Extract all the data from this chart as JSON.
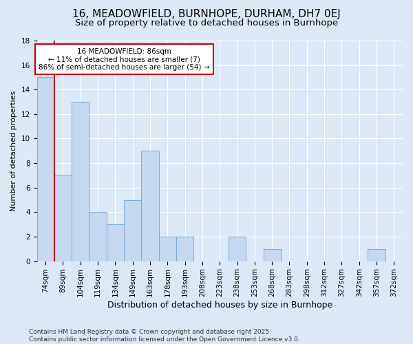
{
  "title": "16, MEADOWFIELD, BURNHOPE, DURHAM, DH7 0EJ",
  "subtitle": "Size of property relative to detached houses in Burnhope",
  "xlabel": "Distribution of detached houses by size in Burnhope",
  "ylabel": "Number of detached properties",
  "categories": [
    "74sqm",
    "89sqm",
    "104sqm",
    "119sqm",
    "134sqm",
    "149sqm",
    "163sqm",
    "178sqm",
    "193sqm",
    "208sqm",
    "223sqm",
    "238sqm",
    "253sqm",
    "268sqm",
    "283sqm",
    "298sqm",
    "312sqm",
    "327sqm",
    "342sqm",
    "357sqm",
    "372sqm"
  ],
  "values": [
    15,
    7,
    13,
    4,
    3,
    5,
    9,
    2,
    2,
    0,
    0,
    2,
    0,
    1,
    0,
    0,
    0,
    0,
    0,
    1,
    0
  ],
  "bar_color": "#c5d8f0",
  "bar_edge_color": "#7bacd4",
  "background_color": "#dce8f5",
  "grid_color": "#ffffff",
  "annotation_box_facecolor": "#ffffff",
  "annotation_box_edgecolor": "#cc0000",
  "red_line_x": 1.0,
  "annotation_text_line1": "16 MEADOWFIELD: 86sqm",
  "annotation_text_line2": "← 11% of detached houses are smaller (7)",
  "annotation_text_line3": "86% of semi-detached houses are larger (54) →",
  "ylim": [
    0,
    18
  ],
  "yticks": [
    0,
    2,
    4,
    6,
    8,
    10,
    12,
    14,
    16,
    18
  ],
  "footer": "Contains HM Land Registry data © Crown copyright and database right 2025.\nContains public sector information licensed under the Open Government Licence v3.0.",
  "title_fontsize": 11,
  "subtitle_fontsize": 9.5,
  "xlabel_fontsize": 9,
  "ylabel_fontsize": 8,
  "tick_fontsize": 7.5,
  "annotation_fontsize": 7.5,
  "footer_fontsize": 6.5
}
